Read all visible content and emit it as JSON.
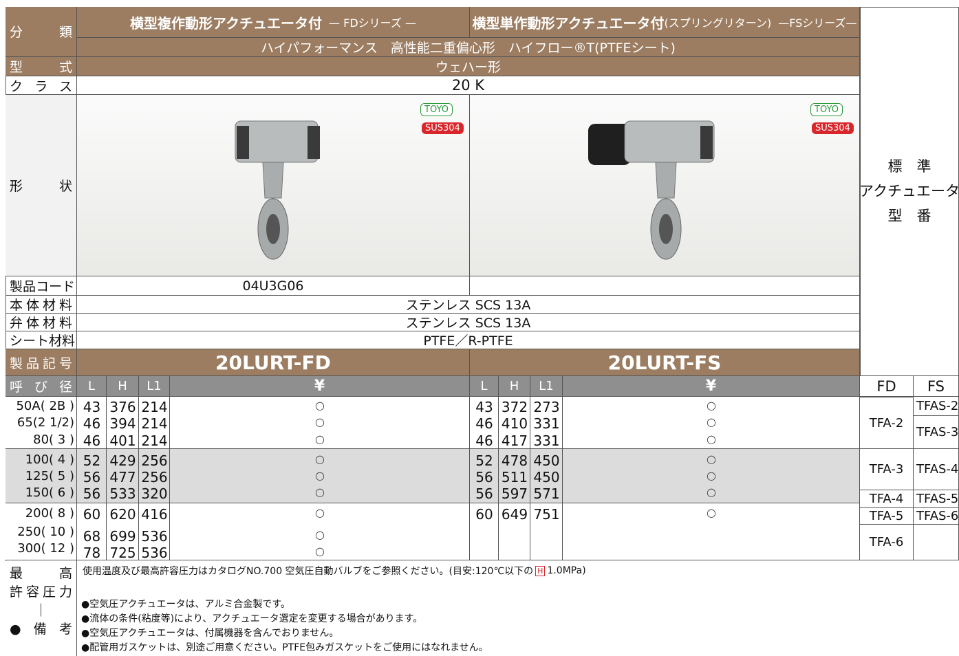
{
  "labels": {
    "category": "分類",
    "type": "型式",
    "class": "クラス",
    "shape": "形状",
    "code": "製品コード",
    "body": "本体材料",
    "disc": "弁体材料",
    "seat": "シート材料",
    "symbol": "製品記号",
    "size": "呼び径",
    "footer": [
      "最高",
      "許容圧力",
      "｜",
      "●備考"
    ]
  },
  "series_titles": [
    {
      "title": "横型複作動形アクチュエータ付",
      "note": "— FDシリーズ —"
    },
    {
      "title": "横型単作動形アクチュエータ付",
      "sub": "(スプリングリターン)",
      "note": "—FSシリーズ—"
    }
  ],
  "performance": "ハイパフォーマンス　高性能二重偏心形　ハイフロー®T(PTFEシート)",
  "type": "ウェハー形",
  "class": "20 K",
  "badges": [
    "TOYO",
    "SUS304"
  ],
  "product_code": "04U3G06",
  "body_material": "ステンレス SCS 13A",
  "disc_material": "ステンレス SCS 13A",
  "seat_material": "PTFE／R-PTFE",
  "product_symbols": [
    "20LURT-FD",
    "20LURT-FS"
  ],
  "actuator_header": [
    "標　準",
    "アクチュエータ",
    "型　番"
  ],
  "actuator_columns": [
    "FD",
    "FS"
  ],
  "columns": [
    "L",
    "H",
    "L1",
    "¥"
  ],
  "sizes": [
    "50A( 2B )",
    "65(2 1/2)",
    "80( 3 )",
    "100( 4 )",
    "125( 5 )",
    "150( 6 )",
    "200( 8 )",
    "250( 10 )",
    "300( 12 )"
  ],
  "fd_rows": [
    [
      43,
      376,
      214,
      "○"
    ],
    [
      46,
      394,
      214,
      "○"
    ],
    [
      46,
      401,
      214,
      "○"
    ],
    [
      52,
      429,
      256,
      "○"
    ],
    [
      56,
      477,
      256,
      "○"
    ],
    [
      56,
      533,
      320,
      "○"
    ],
    [
      60,
      620,
      416,
      "○"
    ],
    [
      68,
      699,
      536,
      "○"
    ],
    [
      78,
      725,
      536,
      "○"
    ]
  ],
  "fs_rows": [
    [
      43,
      372,
      273,
      "○"
    ],
    [
      46,
      410,
      331,
      "○"
    ],
    [
      46,
      417,
      331,
      "○"
    ],
    [
      52,
      478,
      450,
      "○"
    ],
    [
      56,
      511,
      450,
      "○"
    ],
    [
      56,
      597,
      571,
      "○"
    ],
    [
      60,
      649,
      751,
      "○"
    ]
  ],
  "fd_actuators": [
    "TFA-2",
    "TFA-3",
    "TFA-4",
    "TFA-5",
    "TFA-6"
  ],
  "fs_actuators": [
    "TFAS-2",
    "TFAS-3",
    "TFAS-4",
    "TFAS-5",
    "TFAS-6"
  ],
  "notes": {
    "pressure_before": "使用温度及び最高許容圧力はカタログNO.700 空気圧自動バルブをご参照ください。(目安:120℃以下の",
    "pressure_mark": "H",
    "pressure_after": "1.0MPa)",
    "items": [
      "●空気圧アクチュエータは、アルミ合金製です。",
      "●流体の条件(粘度等)により、アクチュエータ選定を変更する場合があります。",
      "●空気圧アクチュエータは、付属機器を含んでおりません。",
      "●配管用ガスケットは、別途ご用意ください。PTFE包みガスケットをご使用にはなれません。"
    ]
  }
}
